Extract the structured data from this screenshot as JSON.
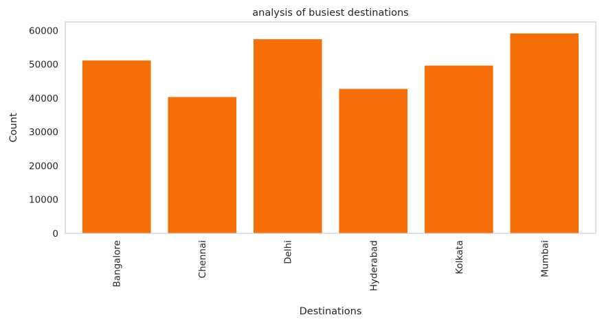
{
  "chart_data": {
    "type": "bar",
    "title": "analysis of busiest destinations",
    "xlabel": "Destinations",
    "ylabel": "Count",
    "categories": [
      "Bangalore",
      "Chennai",
      "Delhi",
      "Hyderabad",
      "Kolkata",
      "Mumbai"
    ],
    "values": [
      51100,
      40300,
      57400,
      42700,
      49600,
      59100
    ],
    "ylim": [
      0,
      62500
    ],
    "yticks": [
      0,
      10000,
      20000,
      30000,
      40000,
      50000,
      60000
    ],
    "grid": false,
    "bar_color": "#f56e06",
    "axes_edge_color": "#cccccc",
    "text_color": "#262626"
  }
}
